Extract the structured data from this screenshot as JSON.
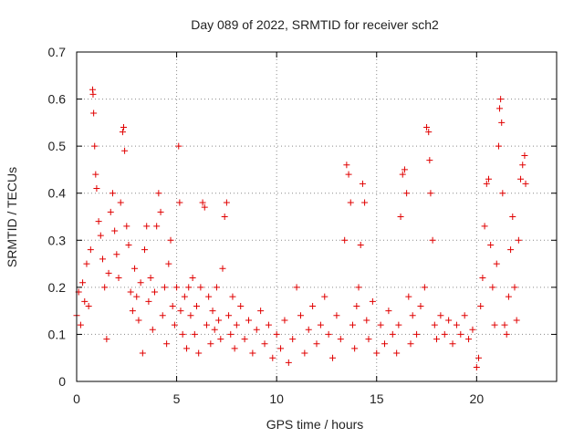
{
  "chart_data": {
    "type": "scatter",
    "title": "Day 089 of 2022, SRMTID for receiver sch2",
    "xlabel": "GPS time / hours",
    "ylabel": "SRMTID / TECUs",
    "xlim": [
      0,
      24
    ],
    "ylim": [
      0,
      0.7
    ],
    "xticks": [
      0,
      5,
      10,
      15,
      20
    ],
    "xtick_labels": [
      "0",
      "5",
      "10",
      "15",
      "20"
    ],
    "yticks": [
      0,
      0.1,
      0.2,
      0.3,
      0.4,
      0.5,
      0.6,
      0.7
    ],
    "ytick_labels": [
      "0",
      "0.1",
      "0.2",
      "0.3",
      "0.4",
      "0.5",
      "0.6",
      "0.7"
    ],
    "grid": true,
    "marker": "+",
    "series": [
      {
        "name": "SRMTID",
        "color": "#e00000",
        "points": [
          [
            0.0,
            0.14
          ],
          [
            0.1,
            0.19
          ],
          [
            0.2,
            0.12
          ],
          [
            0.3,
            0.21
          ],
          [
            0.4,
            0.17
          ],
          [
            0.5,
            0.25
          ],
          [
            0.6,
            0.16
          ],
          [
            0.7,
            0.28
          ],
          [
            0.8,
            0.62
          ],
          [
            0.82,
            0.61
          ],
          [
            0.85,
            0.57
          ],
          [
            0.9,
            0.5
          ],
          [
            0.95,
            0.44
          ],
          [
            1.0,
            0.41
          ],
          [
            1.1,
            0.34
          ],
          [
            1.2,
            0.31
          ],
          [
            1.3,
            0.26
          ],
          [
            1.4,
            0.2
          ],
          [
            1.5,
            0.09
          ],
          [
            1.6,
            0.23
          ],
          [
            1.7,
            0.36
          ],
          [
            1.8,
            0.4
          ],
          [
            1.9,
            0.32
          ],
          [
            2.0,
            0.27
          ],
          [
            2.1,
            0.22
          ],
          [
            2.2,
            0.38
          ],
          [
            2.3,
            0.53
          ],
          [
            2.35,
            0.54
          ],
          [
            2.4,
            0.49
          ],
          [
            2.5,
            0.33
          ],
          [
            2.6,
            0.29
          ],
          [
            2.7,
            0.19
          ],
          [
            2.8,
            0.15
          ],
          [
            2.9,
            0.24
          ],
          [
            3.0,
            0.18
          ],
          [
            3.1,
            0.13
          ],
          [
            3.2,
            0.21
          ],
          [
            3.3,
            0.06
          ],
          [
            3.4,
            0.28
          ],
          [
            3.5,
            0.33
          ],
          [
            3.6,
            0.17
          ],
          [
            3.7,
            0.22
          ],
          [
            3.8,
            0.11
          ],
          [
            3.9,
            0.19
          ],
          [
            4.0,
            0.33
          ],
          [
            4.1,
            0.4
          ],
          [
            4.2,
            0.36
          ],
          [
            4.3,
            0.14
          ],
          [
            4.4,
            0.2
          ],
          [
            4.5,
            0.08
          ],
          [
            4.6,
            0.25
          ],
          [
            4.7,
            0.3
          ],
          [
            4.8,
            0.16
          ],
          [
            4.9,
            0.12
          ],
          [
            5.0,
            0.2
          ],
          [
            5.1,
            0.5
          ],
          [
            5.15,
            0.38
          ],
          [
            5.2,
            0.15
          ],
          [
            5.3,
            0.1
          ],
          [
            5.4,
            0.18
          ],
          [
            5.5,
            0.07
          ],
          [
            5.6,
            0.2
          ],
          [
            5.7,
            0.14
          ],
          [
            5.8,
            0.22
          ],
          [
            5.9,
            0.1
          ],
          [
            6.0,
            0.16
          ],
          [
            6.1,
            0.06
          ],
          [
            6.2,
            0.2
          ],
          [
            6.3,
            0.38
          ],
          [
            6.4,
            0.37
          ],
          [
            6.5,
            0.12
          ],
          [
            6.6,
            0.18
          ],
          [
            6.7,
            0.08
          ],
          [
            6.8,
            0.15
          ],
          [
            6.9,
            0.11
          ],
          [
            7.0,
            0.2
          ],
          [
            7.1,
            0.13
          ],
          [
            7.2,
            0.09
          ],
          [
            7.3,
            0.24
          ],
          [
            7.4,
            0.35
          ],
          [
            7.5,
            0.38
          ],
          [
            7.6,
            0.14
          ],
          [
            7.7,
            0.1
          ],
          [
            7.8,
            0.18
          ],
          [
            7.9,
            0.07
          ],
          [
            8.0,
            0.12
          ],
          [
            8.2,
            0.16
          ],
          [
            8.4,
            0.09
          ],
          [
            8.6,
            0.13
          ],
          [
            8.8,
            0.06
          ],
          [
            9.0,
            0.11
          ],
          [
            9.2,
            0.15
          ],
          [
            9.4,
            0.08
          ],
          [
            9.6,
            0.12
          ],
          [
            9.8,
            0.05
          ],
          [
            10.0,
            0.1
          ],
          [
            10.2,
            0.07
          ],
          [
            10.4,
            0.13
          ],
          [
            10.6,
            0.04
          ],
          [
            10.8,
            0.09
          ],
          [
            11.0,
            0.2
          ],
          [
            11.2,
            0.14
          ],
          [
            11.4,
            0.06
          ],
          [
            11.6,
            0.11
          ],
          [
            11.8,
            0.16
          ],
          [
            12.0,
            0.08
          ],
          [
            12.2,
            0.12
          ],
          [
            12.4,
            0.18
          ],
          [
            12.6,
            0.1
          ],
          [
            12.8,
            0.05
          ],
          [
            13.0,
            0.14
          ],
          [
            13.2,
            0.09
          ],
          [
            13.4,
            0.3
          ],
          [
            13.5,
            0.46
          ],
          [
            13.6,
            0.44
          ],
          [
            13.7,
            0.38
          ],
          [
            13.8,
            0.12
          ],
          [
            13.9,
            0.07
          ],
          [
            14.0,
            0.16
          ],
          [
            14.1,
            0.2
          ],
          [
            14.2,
            0.29
          ],
          [
            14.3,
            0.42
          ],
          [
            14.4,
            0.38
          ],
          [
            14.5,
            0.13
          ],
          [
            14.6,
            0.09
          ],
          [
            14.8,
            0.17
          ],
          [
            15.0,
            0.06
          ],
          [
            15.2,
            0.12
          ],
          [
            15.4,
            0.08
          ],
          [
            15.6,
            0.15
          ],
          [
            15.8,
            0.1
          ],
          [
            16.0,
            0.06
          ],
          [
            16.1,
            0.12
          ],
          [
            16.2,
            0.35
          ],
          [
            16.3,
            0.44
          ],
          [
            16.4,
            0.45
          ],
          [
            16.5,
            0.4
          ],
          [
            16.6,
            0.18
          ],
          [
            16.7,
            0.08
          ],
          [
            16.8,
            0.14
          ],
          [
            17.0,
            0.1
          ],
          [
            17.2,
            0.16
          ],
          [
            17.4,
            0.2
          ],
          [
            17.5,
            0.54
          ],
          [
            17.6,
            0.53
          ],
          [
            17.65,
            0.47
          ],
          [
            17.7,
            0.4
          ],
          [
            17.8,
            0.3
          ],
          [
            17.9,
            0.12
          ],
          [
            18.0,
            0.09
          ],
          [
            18.2,
            0.14
          ],
          [
            18.4,
            0.1
          ],
          [
            18.6,
            0.13
          ],
          [
            18.8,
            0.08
          ],
          [
            19.0,
            0.12
          ],
          [
            19.2,
            0.1
          ],
          [
            19.4,
            0.14
          ],
          [
            19.6,
            0.09
          ],
          [
            19.8,
            0.11
          ],
          [
            20.0,
            0.03
          ],
          [
            20.1,
            0.05
          ],
          [
            20.2,
            0.16
          ],
          [
            20.3,
            0.22
          ],
          [
            20.4,
            0.33
          ],
          [
            20.5,
            0.42
          ],
          [
            20.6,
            0.43
          ],
          [
            20.7,
            0.29
          ],
          [
            20.8,
            0.2
          ],
          [
            20.9,
            0.12
          ],
          [
            21.0,
            0.25
          ],
          [
            21.1,
            0.5
          ],
          [
            21.15,
            0.58
          ],
          [
            21.2,
            0.6
          ],
          [
            21.25,
            0.55
          ],
          [
            21.3,
            0.4
          ],
          [
            21.4,
            0.12
          ],
          [
            21.5,
            0.1
          ],
          [
            21.6,
            0.18
          ],
          [
            21.7,
            0.28
          ],
          [
            21.8,
            0.35
          ],
          [
            21.9,
            0.2
          ],
          [
            22.0,
            0.13
          ],
          [
            22.1,
            0.3
          ],
          [
            22.2,
            0.43
          ],
          [
            22.3,
            0.46
          ],
          [
            22.4,
            0.48
          ],
          [
            22.45,
            0.42
          ]
        ]
      }
    ]
  }
}
